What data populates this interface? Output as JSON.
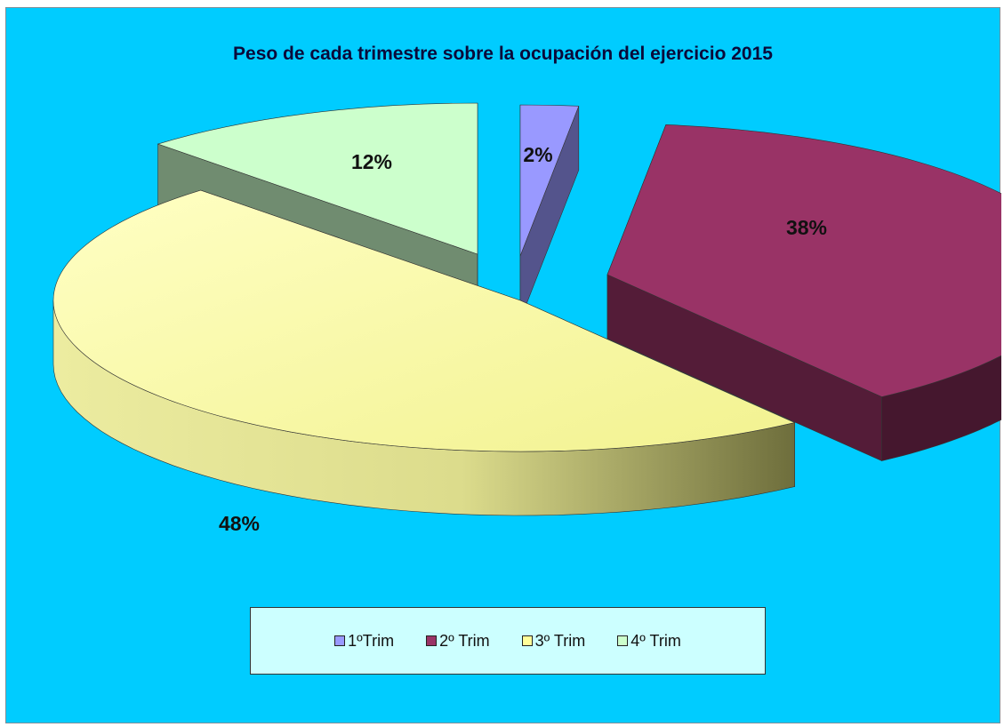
{
  "chart_data": {
    "type": "pie",
    "title": "Peso de cada trimestre sobre la ocupación del ejercicio 2015",
    "style": "3d-exploded",
    "legend_placement": "bottom",
    "slices": [
      {
        "name": "1ºTrim",
        "value": 2,
        "label": "2%",
        "color": "#9999ff"
      },
      {
        "name": "2º Trim",
        "value": 38,
        "label": "38%",
        "color": "#993366"
      },
      {
        "name": "3º Trim",
        "value": 48,
        "label": "48%",
        "color": "#ffff99"
      },
      {
        "name": "4º Trim",
        "value": 12,
        "label": "12%",
        "color": "#ccffcc"
      }
    ],
    "colors": {
      "background": "#00ccff",
      "legend_background": "#ccffff"
    }
  }
}
